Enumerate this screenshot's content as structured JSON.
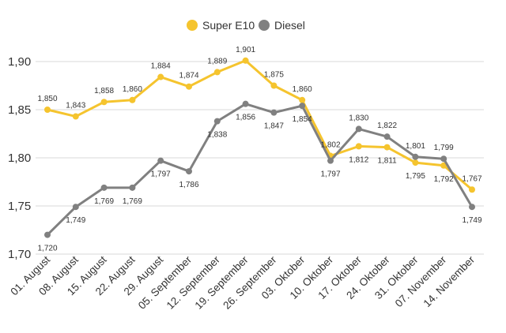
{
  "chart_data": {
    "type": "line",
    "title": "",
    "xlabel": "",
    "ylabel": "",
    "ylim": [
      1.7,
      1.9
    ],
    "yticks": [
      "1,70",
      "1,75",
      "1,80",
      "1,85",
      "1,90"
    ],
    "grid": "horizontal",
    "legend_position": "top-center",
    "categories": [
      "01. August",
      "08. August",
      "15. August",
      "22. August",
      "29. August",
      "05. September",
      "12. September",
      "19. September",
      "26. September",
      "03. Oktober",
      "10. Oktober",
      "17. Oktober",
      "24. Oktober",
      "31. Oktober",
      "07. November",
      "14. November"
    ],
    "series": [
      {
        "name": "Super E10",
        "color": "#f5c42e",
        "values": [
          1.85,
          1.843,
          1.858,
          1.86,
          1.884,
          1.874,
          1.889,
          1.901,
          1.875,
          1.86,
          1.802,
          1.812,
          1.811,
          1.795,
          1.792,
          1.767
        ],
        "labels": [
          "1,850",
          "1,843",
          "1,858",
          "1,860",
          "1,884",
          "1,874",
          "1,889",
          "1,901",
          "1,875",
          "1,860",
          "1,802",
          "1,812",
          "1,811",
          "1,795",
          "1,792",
          "1,767"
        ]
      },
      {
        "name": "Diesel",
        "color": "#808080",
        "values": [
          1.72,
          1.749,
          1.769,
          1.769,
          1.797,
          1.786,
          1.838,
          1.856,
          1.847,
          1.854,
          1.797,
          1.83,
          1.822,
          1.801,
          1.799,
          1.749
        ],
        "labels": [
          "1,720",
          "1,749",
          "1,769",
          "1,769",
          "1,797",
          "1,786",
          "1,838",
          "1,856",
          "1,847",
          "1,854",
          "1,797",
          "1,830",
          "1,822",
          "1,801",
          "1,799",
          "1,749"
        ]
      }
    ]
  }
}
